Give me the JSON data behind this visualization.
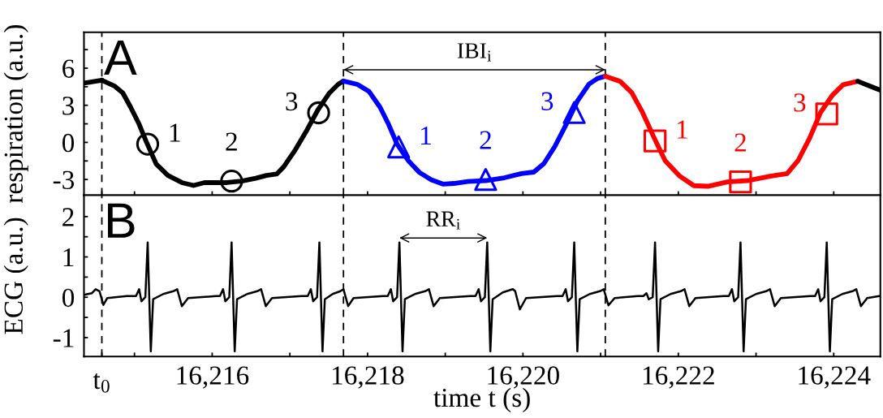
{
  "chart_data": [
    {
      "type": "line",
      "ylabel": "respiration (a.u.)",
      "annotations": [
        "A",
        {
          "text": "1",
          "x": 16215.17,
          "y": -0.14
        },
        {
          "text": "2",
          "x": 16216.25,
          "y": -3.13
        },
        {
          "text": "3",
          "x": 16217.37,
          "y": 2.39
        },
        {
          "text": "1",
          "x": 16218.4,
          "y": -0.37
        },
        {
          "text": "2",
          "x": 16219.52,
          "y": -3.0
        },
        {
          "text": "3",
          "x": 16220.66,
          "y": 2.41
        },
        {
          "text": "1",
          "x": 16221.7,
          "y": 0.12
        },
        {
          "text": "2",
          "x": 16222.8,
          "y": -3.2
        },
        {
          "text": "3",
          "x": 16223.91,
          "y": 2.3
        },
        "IBI$_{i}$"
      ],
      "xlim": [
        16214.35,
        16224.6
      ],
      "ylim": [
        -4.27,
        8.9
      ],
      "xticks": [
        {
          "value": 16214.58,
          "label": null
        },
        {
          "value": 16215,
          "label": null
        },
        {
          "value": 16216,
          "label": null
        },
        {
          "value": 16217,
          "label": null
        },
        {
          "value": 16218,
          "label": null
        },
        {
          "value": 16219,
          "label": null
        },
        {
          "value": 16220,
          "label": null
        },
        {
          "value": 16221,
          "label": null
        },
        {
          "value": 16222,
          "label": null
        },
        {
          "value": 16223,
          "label": null
        },
        {
          "value": 16224,
          "label": null
        }
      ],
      "yticks": [
        {
          "value": 7.5,
          "label": null
        },
        6,
        {
          "value": 4.5,
          "label": null
        },
        3,
        {
          "value": 1.5,
          "label": null
        },
        0,
        {
          "value": -1.5,
          "label": null
        },
        -3
      ],
      "tick_labels": "y",
      "grid": false,
      "ref_lines": [
        {
          "axis": "x",
          "value": 16214.58,
          "color": "#000000",
          "line_style": "dashed"
        },
        {
          "axis": "x",
          "value": 16217.69,
          "color": "#000000",
          "line_style": "dashed"
        },
        {
          "axis": "x",
          "value": 16221.06,
          "color": "#000000",
          "line_style": "dashed"
        }
      ],
      "series": [
        {
          "color": "#000000",
          "x": [
            16214.35,
            16214.45,
            16214.58
          ],
          "values": [
            4.8,
            4.9,
            5.03
          ]
        },
        {
          "color": "#000000",
          "x": [
            16214.58,
            16214.74,
            16214.85,
            16214.95,
            16215.06,
            16215.15,
            16215.28,
            16215.43,
            16215.61,
            16215.76,
            16215.9,
            16216.19,
            16216.38,
            16216.56,
            16216.7,
            16216.83,
            16216.92,
            16217.07,
            16217.22,
            16217.36,
            16217.51,
            16217.62,
            16217.69
          ],
          "values": [
            5.03,
            4.57,
            4.0,
            2.85,
            1.47,
            0.09,
            -1.75,
            -2.67,
            -3.25,
            -3.48,
            -3.25,
            -3.25,
            -3.13,
            -2.9,
            -2.67,
            -2.56,
            -1.98,
            -0.6,
            1.0,
            2.62,
            4.0,
            4.69,
            4.96
          ]
        },
        {
          "color": "#0000ff",
          "x": [
            16217.69,
            16217.87,
            16218.02,
            16218.16,
            16218.27,
            16218.38,
            16218.53,
            16218.67,
            16218.82,
            16218.97,
            16219.11,
            16219.29,
            16219.52,
            16219.76,
            16219.98,
            16220.14,
            16220.27,
            16220.41,
            16220.56,
            16220.7,
            16220.85,
            16220.96,
            16221.06
          ],
          "values": [
            4.96,
            4.69,
            4.11,
            2.85,
            1.47,
            -0.14,
            -1.52,
            -2.44,
            -3.02,
            -3.37,
            -3.32,
            -3.16,
            -3.09,
            -2.86,
            -2.52,
            -2.4,
            -1.71,
            -0.33,
            1.5,
            3.33,
            4.71,
            5.17,
            5.35
          ]
        },
        {
          "color": "#ff0000",
          "x": [
            16221.06,
            16221.25,
            16221.4,
            16221.54,
            16221.69,
            16221.83,
            16222.02,
            16222.2,
            16222.38,
            16222.63,
            16222.89,
            16223.18,
            16223.4,
            16223.54,
            16223.69,
            16223.83,
            16223.98,
            16224.12,
            16224.31
          ],
          "values": [
            5.35,
            4.94,
            4.02,
            2.41,
            0.35,
            -1.48,
            -2.74,
            -3.5,
            -3.55,
            -3.2,
            -3.09,
            -2.74,
            -2.52,
            -1.48,
            0.35,
            2.41,
            3.79,
            4.66,
            4.94
          ]
        },
        {
          "color": "#000000",
          "x": [
            16224.31,
            16224.45,
            16224.59
          ],
          "values": [
            4.94,
            4.59,
            4.25
          ]
        },
        {
          "type": "scatter",
          "marker": "circle",
          "color": "#000000",
          "x": [
            16215.17,
            16216.25,
            16217.37
          ],
          "values": [
            -0.14,
            -3.13,
            2.39
          ]
        },
        {
          "type": "scatter",
          "marker": "triangle",
          "color": "#0000ff",
          "x": [
            16218.4,
            16219.52,
            16220.66
          ],
          "values": [
            -0.37,
            -3.0,
            2.41
          ]
        },
        {
          "type": "scatter",
          "marker": "square",
          "color": "#ff0000",
          "x": [
            16221.7,
            16222.8,
            16223.91
          ],
          "values": [
            0.12,
            -3.2,
            2.3
          ]
        }
      ]
    },
    {
      "type": "line",
      "ylabel": "ECG (a.u.)",
      "xlabel": "time t (s)",
      "annotations": [
        "B",
        {
          "text": "t$_{0}$",
          "x": 16214.58,
          "y": -1.47
        },
        "RR$_{i}$"
      ],
      "xlim": [
        16214.35,
        16224.6
      ],
      "ylim": [
        -1.47,
        2.53
      ],
      "xticks": [
        {
          "value": 16214.58,
          "label": null
        },
        {
          "value": 16215,
          "label": null
        },
        {
          "value": 16216,
          "label": "16,216"
        },
        {
          "value": 16217,
          "label": null
        },
        {
          "value": 16218,
          "label": "16,218"
        },
        {
          "value": 16219,
          "label": null
        },
        {
          "value": 16220,
          "label": "16,220"
        },
        {
          "value": 16221,
          "label": null
        },
        {
          "value": 16222,
          "label": "16,222"
        },
        {
          "value": 16223,
          "label": null
        },
        {
          "value": 16224,
          "label": "16,224"
        }
      ],
      "yticks": [
        2,
        {
          "value": 1.5,
          "label": null
        },
        1,
        {
          "value": 0.5,
          "label": null
        },
        0,
        {
          "value": -0.5,
          "label": null
        },
        -1
      ],
      "grid": false,
      "ref_lines": [
        {
          "axis": "x",
          "value": 16214.58,
          "color": "#000000",
          "line_style": "dashed"
        },
        {
          "axis": "x",
          "value": 16217.69,
          "color": "#000000",
          "line_style": "dashed"
        },
        {
          "axis": "x",
          "value": 16221.06,
          "color": "#000000",
          "line_style": "dashed"
        }
      ],
      "series": [
        {
          "color": "#000000",
          "x": [
            16214.35,
            16214.45,
            16214.5,
            16214.55,
            16214.6,
            16214.65,
            16214.9,
            16215.02,
            16215.06,
            16215.09,
            16215.14,
            16215.17,
            16215.19,
            16215.21,
            16215.24,
            16215.37,
            16215.5,
            16215.55,
            16215.61,
            16215.69,
            16216.05,
            16216.1,
            16216.14,
            16216.17,
            16216.22,
            16216.25,
            16216.27,
            16216.29,
            16216.32,
            16216.45,
            16216.58,
            16216.63,
            16216.69,
            16216.77,
            16217.15,
            16217.23,
            16217.27,
            16217.3,
            16217.35,
            16217.38,
            16217.4,
            16217.42,
            16217.45,
            16217.55,
            16217.65,
            16217.69,
            16217.75,
            16217.82,
            16218.2,
            16218.26,
            16218.3,
            16218.33,
            16218.38,
            16218.41,
            16218.43,
            16218.45,
            16218.48,
            16218.61,
            16218.74,
            16218.79,
            16218.85,
            16218.93,
            16219.32,
            16219.39,
            16219.43,
            16219.46,
            16219.51,
            16219.54,
            16219.56,
            16219.58,
            16219.61,
            16219.74,
            16219.87,
            16219.9,
            16219.96,
            16220.04,
            16220.44,
            16220.51,
            16220.55,
            16220.58,
            16220.63,
            16220.66,
            16220.68,
            16220.7,
            16220.73,
            16220.86,
            16220.99,
            16221.04,
            16221.1,
            16221.18,
            16221.48,
            16221.55,
            16221.59,
            16221.62,
            16221.67,
            16221.7,
            16221.72,
            16221.74,
            16221.77,
            16221.9,
            16222.03,
            16222.08,
            16222.14,
            16222.22,
            16222.58,
            16222.65,
            16222.69,
            16222.72,
            16222.77,
            16222.8,
            16222.82,
            16222.84,
            16222.87,
            16223.0,
            16223.13,
            16223.18,
            16223.24,
            16223.32,
            16223.7,
            16223.76,
            16223.8,
            16223.83,
            16223.88,
            16223.91,
            16223.93,
            16223.95,
            16223.98,
            16224.11,
            16224.24,
            16224.29,
            16224.35,
            16224.43,
            16224.59
          ],
          "values": [
            0.06,
            0.1,
            0.2,
            0.15,
            -0.19,
            -0.02,
            0.03,
            0.03,
            0.2,
            -0.1,
            0.0,
            1.36,
            0.0,
            -1.34,
            -0.05,
            0.08,
            0.15,
            0.2,
            -0.22,
            -0.02,
            0.03,
            0.03,
            0.2,
            -0.1,
            0.0,
            1.36,
            0.0,
            -1.34,
            -0.05,
            0.08,
            0.15,
            0.2,
            -0.22,
            -0.02,
            0.03,
            0.03,
            0.2,
            -0.1,
            0.0,
            1.36,
            0.0,
            -1.34,
            -0.05,
            0.08,
            0.15,
            0.2,
            -0.22,
            -0.02,
            0.03,
            0.03,
            0.2,
            -0.1,
            0.0,
            1.36,
            0.0,
            -1.34,
            -0.05,
            0.08,
            0.15,
            0.2,
            -0.22,
            -0.02,
            0.03,
            0.03,
            0.2,
            -0.1,
            0.0,
            1.36,
            0.0,
            -1.34,
            -0.05,
            0.12,
            0.2,
            0.15,
            -0.3,
            -0.02,
            0.03,
            0.03,
            0.2,
            -0.1,
            0.0,
            1.36,
            0.0,
            -1.34,
            -0.05,
            0.08,
            0.15,
            0.2,
            -0.2,
            -0.02,
            0.03,
            0.03,
            0.1,
            -0.05,
            0.0,
            1.36,
            0.0,
            -1.34,
            -0.05,
            0.08,
            0.15,
            0.2,
            -0.22,
            -0.02,
            0.03,
            0.03,
            0.2,
            -0.1,
            0.0,
            1.36,
            0.0,
            -1.34,
            -0.05,
            0.08,
            0.15,
            0.2,
            -0.22,
            -0.02,
            0.03,
            0.03,
            0.2,
            -0.1,
            0.0,
            1.36,
            0.0,
            -1.34,
            -0.05,
            0.08,
            0.15,
            0.2,
            -0.22,
            -0.02,
            0.03
          ]
        }
      ]
    }
  ]
}
